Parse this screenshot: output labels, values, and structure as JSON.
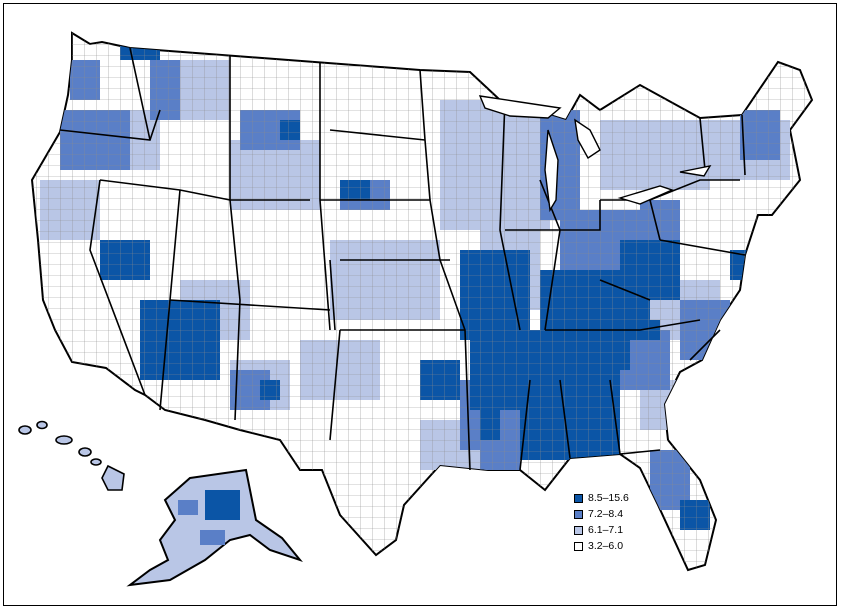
{
  "map": {
    "colors": {
      "highest": "#0b55a6",
      "high": "#5a7fc7",
      "medium": "#b9c6e6",
      "low": "#ffffff",
      "county_border": "#8b8b8b",
      "state_border": "#000000"
    }
  },
  "legend": {
    "items": [
      {
        "label": "8.5–15.6",
        "color": "#0b55a6"
      },
      {
        "label": "7.2–8.4",
        "color": "#5a7fc7"
      },
      {
        "label": "6.1–7.1",
        "color": "#b9c6e6"
      },
      {
        "label": "3.2–6.0",
        "color": "#ffffff"
      }
    ]
  }
}
